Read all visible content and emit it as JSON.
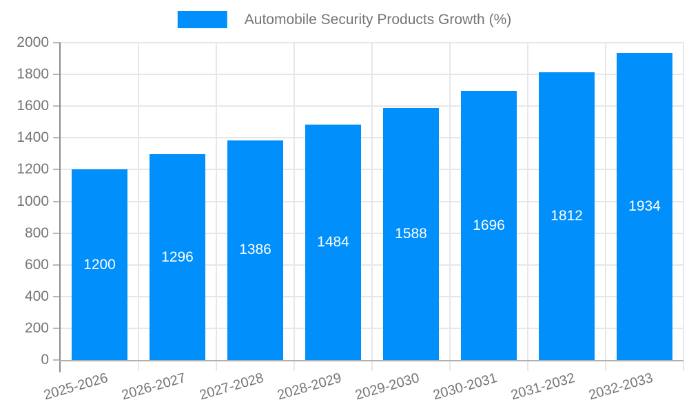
{
  "chart_data": {
    "type": "bar",
    "title": "Automobile Security Products Growth (%)",
    "categories": [
      "2025-2026",
      "2026-2027",
      "2027-2028",
      "2028-2029",
      "2029-2030",
      "2030-2031",
      "2031-2032",
      "2032-2033"
    ],
    "series": [
      {
        "name": "Automobile Security Products Growth (%)",
        "values": [
          1200,
          1296,
          1386,
          1484,
          1588,
          1696,
          1812,
          1934
        ]
      }
    ],
    "bar_value_labels": [
      "1200",
      "1296",
      "1386",
      "1484",
      "1588",
      "1696",
      "1812",
      "1934"
    ],
    "xlabel": "",
    "ylabel": "",
    "ylim": [
      0,
      2000
    ],
    "yticks": [
      0,
      200,
      400,
      600,
      800,
      1000,
      1200,
      1400,
      1600,
      1800,
      2000
    ],
    "grid": true,
    "legend_position": "top"
  },
  "legend": {
    "label": "Automobile Security Products Growth (%)"
  },
  "colors": {
    "bar": "#008FFB",
    "bar_label": "#FFFFFF",
    "axis_text": "#757575",
    "legend_text": "#757575",
    "gridline": "#E7E7E7",
    "y_axis_line": "#8C8C8C",
    "x_axis_line": "#B0B0B0",
    "tick": "#B8B8B8"
  }
}
